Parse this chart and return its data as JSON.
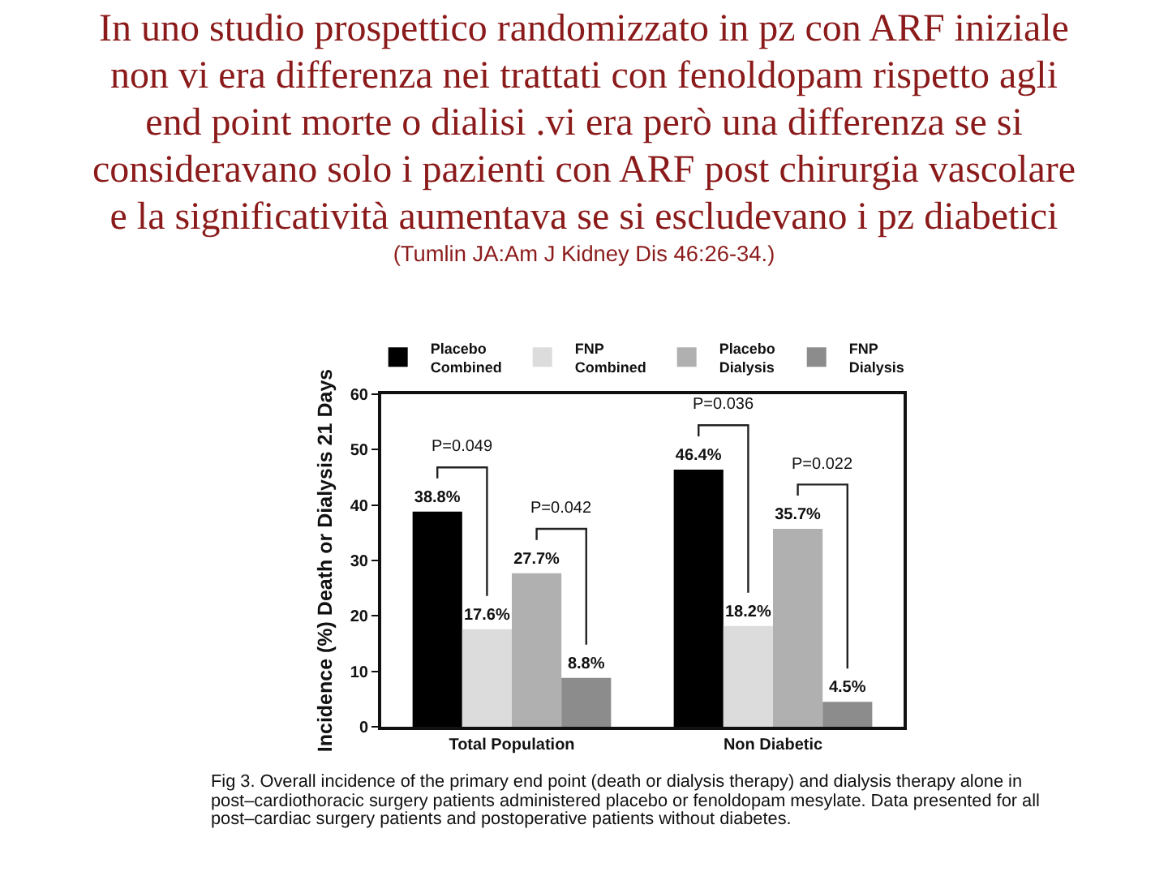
{
  "chart_data": {
    "type": "bar",
    "title": "In uno studio prospettico randomizzato in pz con ARF iniziale non vi era differenza nei trattati con fenoldopam rispetto agli end point morte o dialisi .vi era però una differenza se si consideravano solo i pazienti con ARF post chirurgia vascolare e la significatività aumentava se si escludevano i pz diabetici",
    "ylabel": "Incidence (%) Death or Dialysis 21 Days",
    "categories": [
      "Total Population",
      "Non Diabetic"
    ],
    "series": [
      {
        "name": "Placebo Combined",
        "color": "#000000",
        "values": [
          38.8,
          46.4
        ],
        "value_labels": [
          "38.8%",
          "46.4%"
        ]
      },
      {
        "name": "FNP Combined",
        "color": "#dcdcdc",
        "values": [
          17.6,
          18.2
        ],
        "value_labels": [
          "17.6%",
          "18.2%"
        ]
      },
      {
        "name": "Placebo Dialysis",
        "color": "#b0b0b0",
        "values": [
          27.7,
          35.7
        ],
        "value_labels": [
          "27.7%",
          "35.7%"
        ]
      },
      {
        "name": "FNP Dialysis",
        "color": "#8c8c8c",
        "values": [
          8.8,
          4.5
        ],
        "value_labels": [
          "8.8%",
          "4.5%"
        ]
      }
    ],
    "ylim": [
      0,
      60
    ],
    "yticks": [
      0,
      10,
      20,
      30,
      40,
      50,
      60
    ],
    "legend": "top",
    "annotations": [
      "P=0.049",
      "P=0.042",
      "P=0.036",
      "P=0.022",
      "(Tumlin JA:Am J Kidney Dis 46:26-34.)",
      "Fig 3. Overall incidence of the primary end point (death or dialysis therapy) and dialysis therapy alone in post–cardiothoracic surgery patients administered placebo or fenoldopam mesylate. Data presented for all post–cardiac surgery patients and postoperative patients without diabetes."
    ]
  }
}
